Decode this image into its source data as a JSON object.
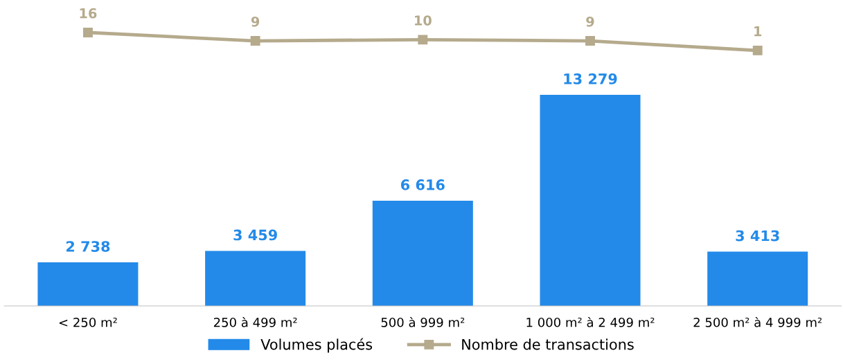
{
  "chart_data": {
    "type": "bar",
    "categories": [
      "< 250 m²",
      "250 à 499 m²",
      "500 à 999 m²",
      "1 000 m² à 2 499 m²",
      "2 500 m² à 4 999 m²"
    ],
    "series": [
      {
        "name": "Volumes placés",
        "color": "#238ae9",
        "values": [
          2738,
          3459,
          6616,
          13279,
          3413
        ],
        "value_labels": [
          "2 738",
          "3 459",
          "6 616",
          "13 279",
          "3 413"
        ]
      },
      {
        "name": "Nombre de transactions",
        "type": "line",
        "axis": "y2",
        "color": "#b5aa8c",
        "values": [
          16,
          9,
          10,
          9,
          1
        ]
      }
    ],
    "ylim": [
      0,
      17500
    ],
    "y2lim": [
      -212,
      20
    ],
    "tick_labels": "x",
    "data_labels": true,
    "legend": "bottom",
    "grid": false,
    "marker": "square",
    "line_style": "solid"
  }
}
